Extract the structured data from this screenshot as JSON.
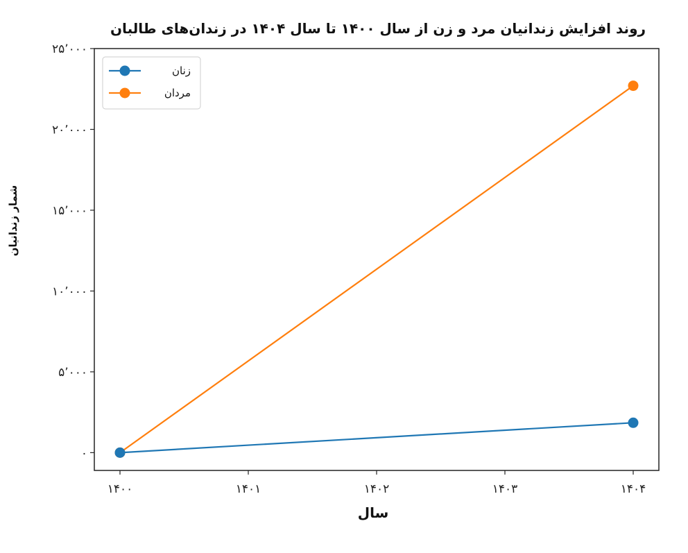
{
  "chart_data": {
    "type": "line",
    "title": "روند افزایش زندانیان مرد و زن از سال ۱۴۰۰ تا سال ۱۴۰۴ در زندان‌های طالبان",
    "xlabel": "سال",
    "ylabel": "شمار زندانیان",
    "x": [
      1400,
      1404
    ],
    "xticks": [
      1400,
      1401,
      1402,
      1403,
      1404
    ],
    "xtick_labels": [
      "۱۴۰۰",
      "۱۴۰۱",
      "۱۴۰۲",
      "۱۴۰۳",
      "۱۴۰۴"
    ],
    "yticks": [
      0,
      5000,
      10000,
      15000,
      20000,
      25000
    ],
    "ytick_labels": [
      "۰",
      "۵٬۰۰۰",
      "۱۰٬۰۰۰",
      "۱۵٬۰۰۰",
      "۲۰٬۰۰۰",
      "۲۵٬۰۰۰"
    ],
    "xlim": [
      1399.8,
      1404.2
    ],
    "ylim": [
      -1100,
      25000
    ],
    "grid": false,
    "legend_position": "top-left",
    "series": [
      {
        "name": "زنان",
        "color": "#1f77b4",
        "marker": "circle",
        "values": [
          0,
          1850
        ]
      },
      {
        "name": "مردان",
        "color": "#ff7f0e",
        "marker": "circle",
        "values": [
          0,
          22700
        ]
      }
    ]
  }
}
